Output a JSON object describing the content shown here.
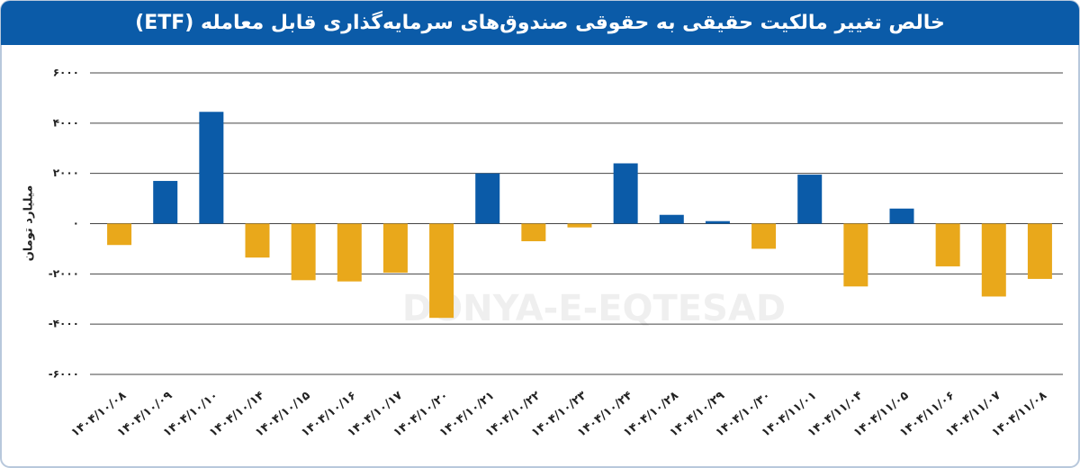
{
  "chart_data": {
    "type": "bar",
    "title": "خالص تغییر مالکیت حقیقی به حقوقی صندوق‌های سرمایه‌گذاری قابل معامله (ETF)",
    "y_label": "میلیارد تومان",
    "watermark": "DONYA-E-EQTESAD",
    "categories": [
      "۱۴۰۴/۱۰/۰۸",
      "۱۴۰۴/۱۰/۰۹",
      "۱۴۰۴/۱۰/۱۰",
      "۱۴۰۴/۱۰/۱۴",
      "۱۴۰۴/۱۰/۱۵",
      "۱۴۰۴/۱۰/۱۶",
      "۱۴۰۴/۱۰/۱۷",
      "۱۴۰۴/۱۰/۲۰",
      "۱۴۰۴/۱۰/۲۱",
      "۱۴۰۴/۱۰/۲۲",
      "۱۴۰۴/۱۰/۲۳",
      "۱۴۰۴/۱۰/۲۴",
      "۱۴۰۴/۱۰/۲۸",
      "۱۴۰۴/۱۰/۲۹",
      "۱۴۰۴/۱۰/۳۰",
      "۱۴۰۴/۱۱/۰۱",
      "۱۴۰۴/۱۱/۰۴",
      "۱۴۰۴/۱۱/۰۵",
      "۱۴۰۴/۱۱/۰۶",
      "۱۴۰۴/۱۱/۰۷",
      "۱۴۰۴/۱۱/۰۸"
    ],
    "values": [
      -850,
      1700,
      4450,
      -1350,
      -2250,
      -2300,
      -1950,
      -3750,
      2000,
      -700,
      -150,
      2400,
      350,
      100,
      -1000,
      1950,
      -2500,
      600,
      -1700,
      -2900,
      -2200
    ],
    "positive_color": "#0b5ba8",
    "negative_color": "#e9a81b",
    "ylim": [
      -6000,
      6000
    ],
    "yticks": [
      {
        "value": -6000,
        "label": "-۶۰۰۰"
      },
      {
        "value": -4000,
        "label": "-۴۰۰۰"
      },
      {
        "value": -2000,
        "label": "-۲۰۰۰"
      },
      {
        "value": 0,
        "label": "۰"
      },
      {
        "value": 2000,
        "label": "۲۰۰۰"
      },
      {
        "value": 4000,
        "label": "۴۰۰۰"
      },
      {
        "value": 6000,
        "label": "۶۰۰۰"
      }
    ],
    "grid": true
  }
}
